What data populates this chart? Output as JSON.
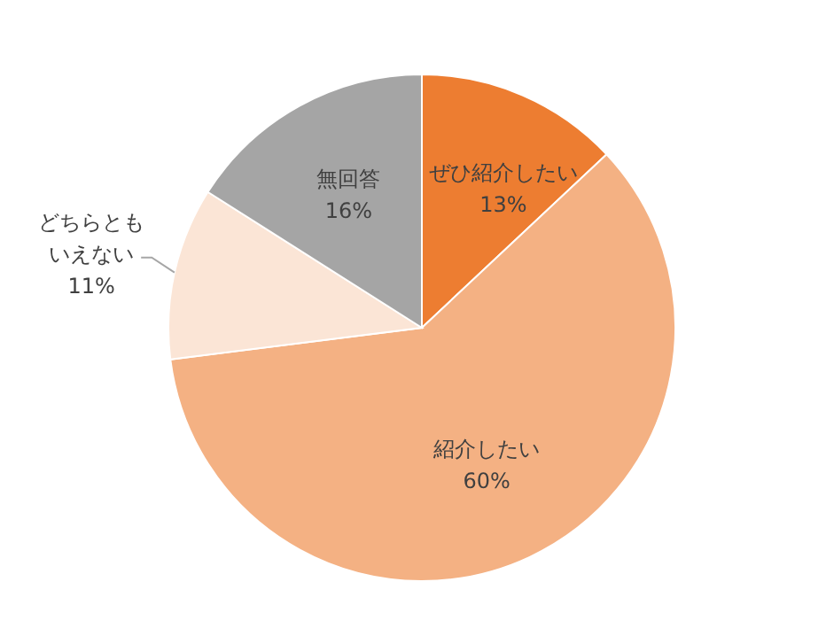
{
  "chart_data": {
    "type": "pie",
    "categories": [
      "ぜひ紹介したい",
      "紹介したい",
      "どちらともいえない",
      "無回答"
    ],
    "values": [
      13,
      60,
      11,
      16
    ],
    "colors": [
      "#ed7d31",
      "#f4b183",
      "#fbe5d6",
      "#a5a5a5"
    ],
    "value_labels": [
      "13%",
      "60%",
      "11%",
      "16%"
    ]
  }
}
